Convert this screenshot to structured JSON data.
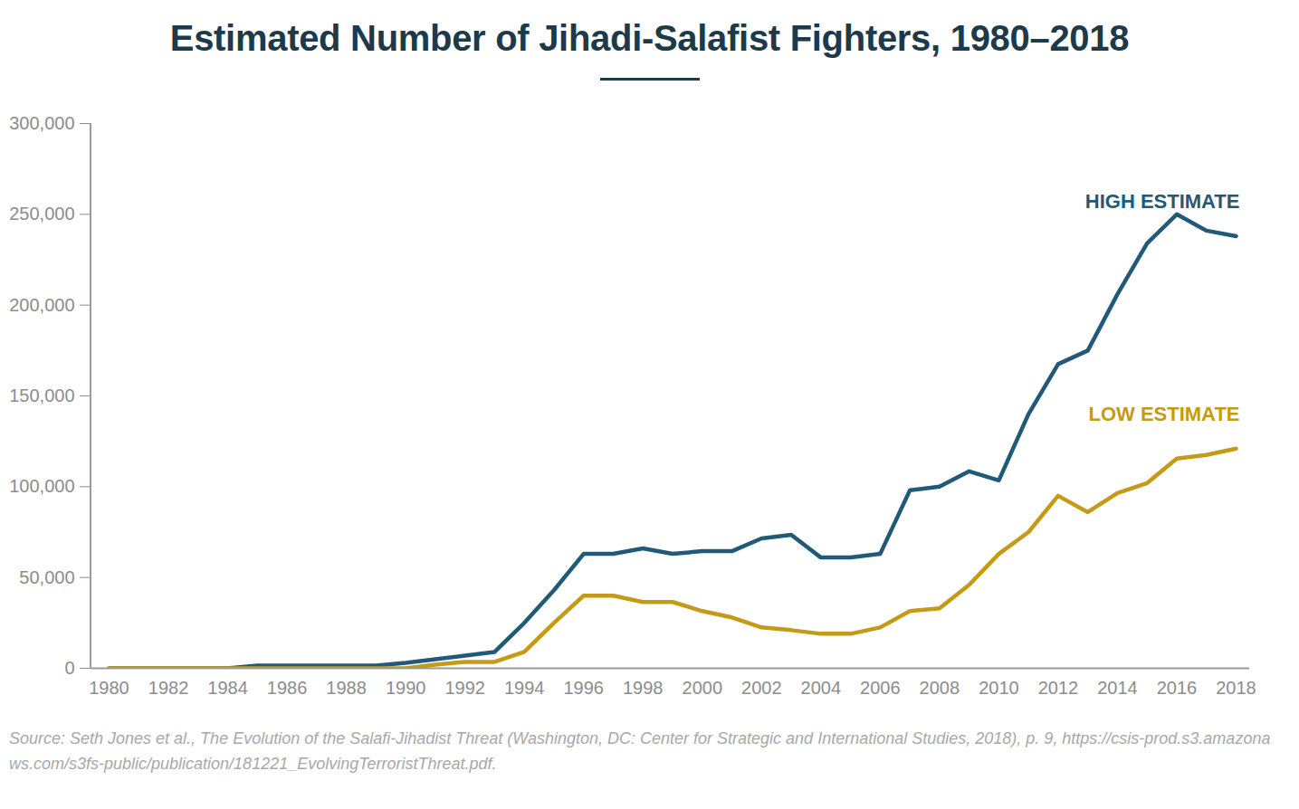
{
  "chart_data": {
    "type": "line",
    "title": "Estimated Number of Jihadi-Salafist Fighters, 1980–2018",
    "caption": "Source: Seth Jones et al., The Evolution of the Salafi-Jihadist Threat (Washington, DC: Center for Strategic and International Studies, 2018), p. 9, https://csis-prod.s3.amazonaws.com/s3fs-public/publication/181221_EvolvingTerroristThreat.pdf.",
    "x": [
      1980,
      1981,
      1982,
      1983,
      1984,
      1985,
      1986,
      1987,
      1988,
      1989,
      1990,
      1991,
      1992,
      1993,
      1994,
      1995,
      1996,
      1997,
      1998,
      1999,
      2000,
      2001,
      2002,
      2003,
      2004,
      2005,
      2006,
      2007,
      2008,
      2009,
      2010,
      2011,
      2012,
      2013,
      2014,
      2015,
      2016,
      2017,
      2018
    ],
    "series": [
      {
        "name": "HIGH ESTIMATE",
        "color": "#215a78",
        "values": [
          0,
          0,
          0,
          0,
          0,
          1500,
          1500,
          1500,
          1500,
          1500,
          3000,
          5000,
          7000,
          9000,
          25000,
          43000,
          63000,
          63000,
          66000,
          63000,
          64500,
          64500,
          71500,
          73500,
          61000,
          61000,
          63000,
          98000,
          100000,
          108500,
          103500,
          140000,
          167500,
          175000,
          206000,
          234000,
          250000,
          241000,
          238000
        ]
      },
      {
        "name": "LOW ESTIMATE",
        "color": "#c49a16",
        "values": [
          0,
          0,
          0,
          0,
          0,
          0,
          0,
          0,
          0,
          0,
          0,
          2000,
          3500,
          3500,
          9000,
          25000,
          40000,
          40000,
          36500,
          36500,
          31500,
          28000,
          22500,
          21000,
          19000,
          19000,
          22500,
          31500,
          33000,
          46000,
          63000,
          75000,
          95000,
          86000,
          96500,
          102000,
          115500,
          117500,
          121000
        ]
      }
    ],
    "xlim": [
      1980,
      2018
    ],
    "xticks": [
      1980,
      1982,
      1984,
      1986,
      1988,
      1990,
      1992,
      1994,
      1996,
      1998,
      2000,
      2002,
      2004,
      2006,
      2008,
      2010,
      2012,
      2014,
      2016,
      2018
    ],
    "ylim": [
      0,
      300000
    ],
    "yticks": [
      0,
      {
        "value": 50000,
        "label": "50,000"
      },
      {
        "value": 100000,
        "label": "100,000"
      },
      {
        "value": 150000,
        "label": "150,000"
      },
      {
        "value": 200000,
        "label": "200,000"
      },
      {
        "value": 250000,
        "label": "250,000"
      },
      {
        "value": 300000,
        "label": "300,000"
      }
    ],
    "grid": false
  }
}
